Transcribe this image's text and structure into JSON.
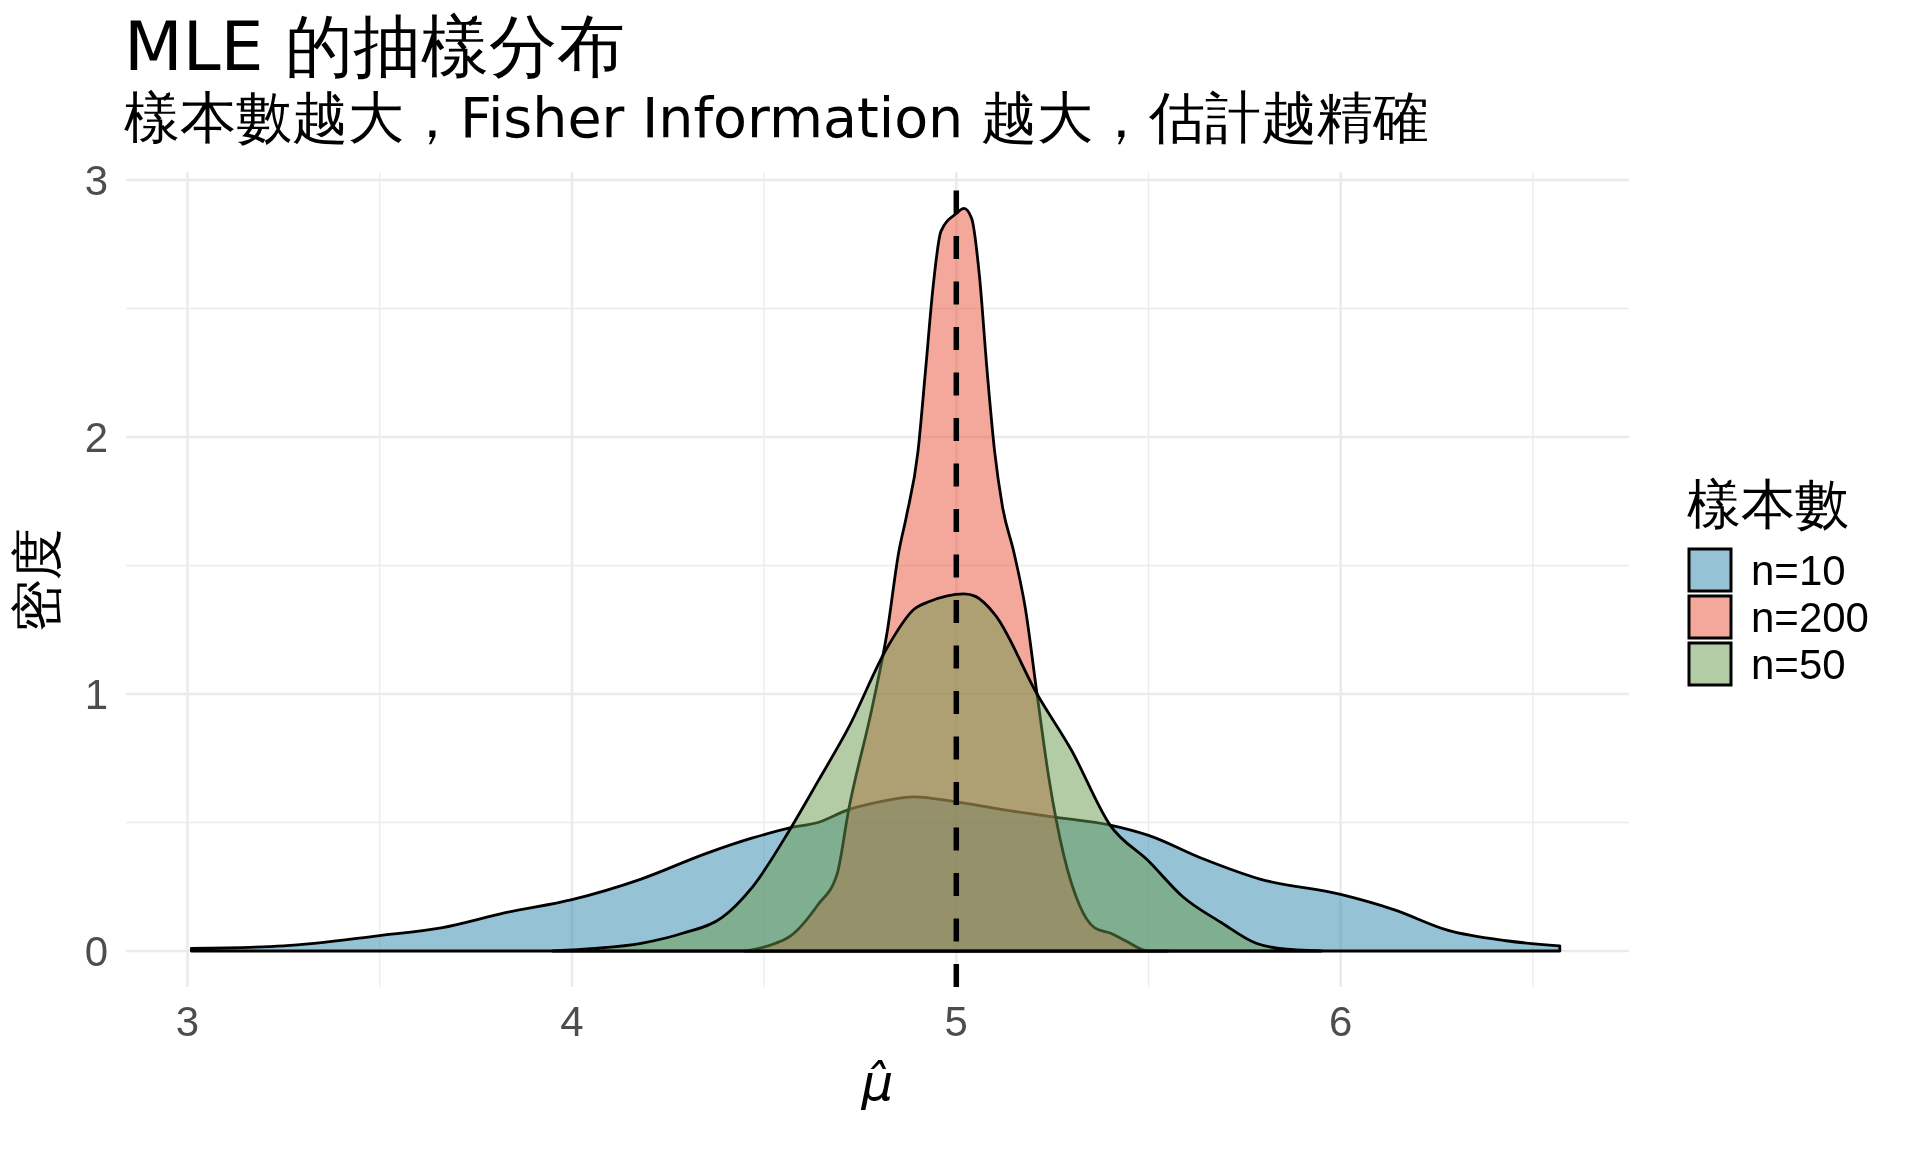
{
  "chart_data": {
    "type": "area",
    "title": "MLE 的抽樣分布",
    "subtitle": "樣本數越大，Fisher Information 越大，估計越精確",
    "xlabel": "μ̂",
    "ylabel": "密度",
    "legend_title": "樣本數",
    "legend": "right",
    "grid": true,
    "xlim": [
      2.84,
      6.75
    ],
    "ylim": [
      -0.14,
      3.03
    ],
    "xticks": [
      3,
      {
        "value": 3.5,
        "label": null
      },
      4,
      {
        "value": 4.5,
        "label": null
      },
      5,
      {
        "value": 5.5,
        "label": null
      },
      6,
      {
        "value": 6.5,
        "label": null
      }
    ],
    "yticks": [
      0,
      {
        "value": 0.5,
        "label": null
      },
      1,
      {
        "value": 1.5,
        "label": null
      },
      2,
      {
        "value": 2.5,
        "label": null
      },
      3
    ],
    "ref_lines": [
      {
        "axis": "x",
        "value": 5,
        "color": "#000000",
        "line_style": "dashed"
      }
    ],
    "series": [
      {
        "name": "n=10",
        "color": "#2e86ab",
        "x": [
          3.01,
          3.25,
          3.5,
          3.66,
          3.83,
          4.0,
          4.18,
          4.35,
          4.47,
          4.57,
          4.64,
          4.72,
          4.8,
          4.89,
          5.0,
          5.12,
          5.26,
          5.4,
          5.5,
          5.64,
          5.79,
          6.0,
          6.14,
          6.28,
          6.43,
          6.57
        ],
        "values": [
          0.01,
          0.02,
          0.06,
          0.09,
          0.15,
          0.2,
          0.28,
          0.38,
          0.44,
          0.48,
          0.5,
          0.55,
          0.58,
          0.6,
          0.58,
          0.55,
          0.52,
          0.49,
          0.45,
          0.36,
          0.28,
          0.22,
          0.16,
          0.08,
          0.04,
          0.02
        ]
      },
      {
        "name": "n=200",
        "color": "#e94f37",
        "x": [
          4.45,
          4.53,
          4.57,
          4.64,
          4.69,
          4.72,
          4.78,
          4.82,
          4.85,
          4.87,
          4.9,
          4.92,
          4.94,
          4.96,
          5.0,
          5.02,
          5.04,
          5.06,
          5.08,
          5.1,
          5.12,
          5.15,
          5.18,
          5.21,
          5.24,
          5.28,
          5.32,
          5.36,
          5.4,
          5.44,
          5.5,
          5.55
        ],
        "values": [
          0,
          0.03,
          0.06,
          0.18,
          0.3,
          0.55,
          0.94,
          1.24,
          1.55,
          1.69,
          1.94,
          2.26,
          2.59,
          2.8,
          2.87,
          2.89,
          2.85,
          2.63,
          2.26,
          1.94,
          1.73,
          1.55,
          1.33,
          1.0,
          0.68,
          0.37,
          0.18,
          0.09,
          0.07,
          0.04,
          0,
          0
        ]
      },
      {
        "name": "n=50",
        "color": "#6a994e",
        "x": [
          3.95,
          4.06,
          4.18,
          4.29,
          4.39,
          4.47,
          4.57,
          4.64,
          4.72,
          4.82,
          4.89,
          4.93,
          5.02,
          5.05,
          5.1,
          5.21,
          5.3,
          5.4,
          5.5,
          5.59,
          5.69,
          5.78,
          5.84,
          5.95
        ],
        "values": [
          0,
          0.01,
          0.03,
          0.07,
          0.13,
          0.25,
          0.48,
          0.66,
          0.87,
          1.18,
          1.33,
          1.36,
          1.39,
          1.38,
          1.31,
          1.0,
          0.78,
          0.49,
          0.35,
          0.21,
          0.11,
          0.03,
          0.01,
          0
        ]
      }
    ]
  }
}
